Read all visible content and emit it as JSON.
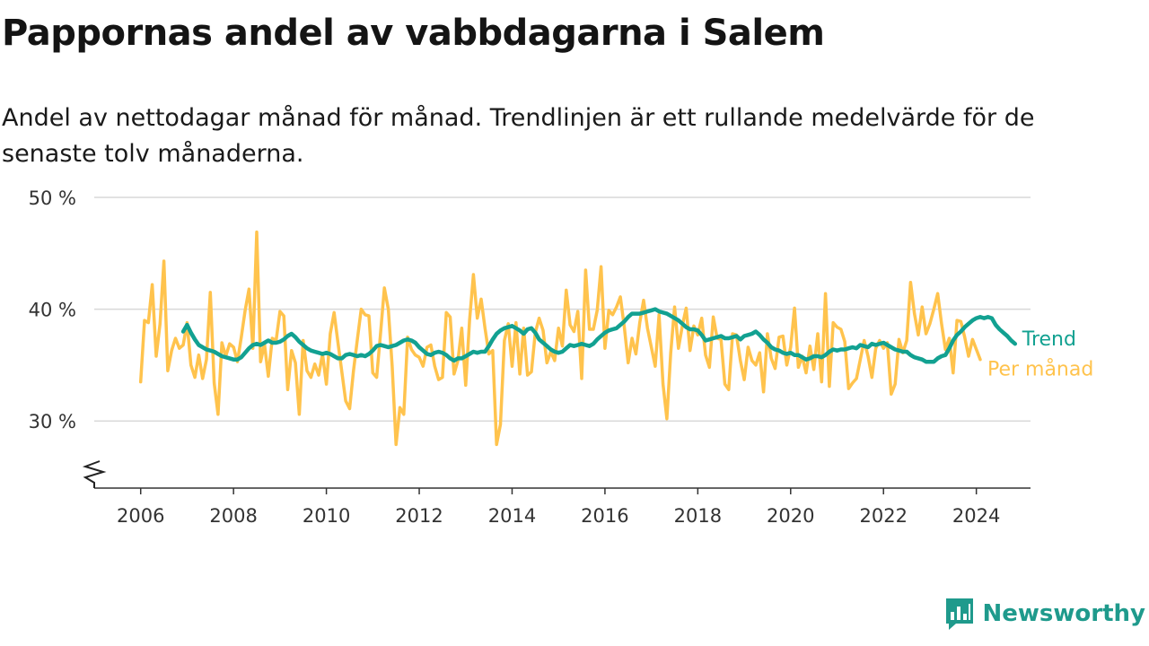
{
  "title": "Pappornas andel av vabbdagarna i Salem",
  "subtitle": "Andel av nettodagar månad för månad. Trendlinjen är ett rullande medelvärde för de senaste tolv månaderna.",
  "brand": {
    "name": "Newsworthy",
    "icon": "newsworthy-logo-icon",
    "color": "#1f9a8c"
  },
  "chart_data": {
    "type": "line",
    "xlabel": "",
    "ylabel": "",
    "x_ticks": [
      "2006",
      "2008",
      "2010",
      "2012",
      "2014",
      "2016",
      "2018",
      "2020",
      "2022",
      "2024"
    ],
    "y_ticks": [
      "30 %",
      "40 %",
      "50 %"
    ],
    "y_tick_values": [
      30,
      40,
      50
    ],
    "ylim": [
      24,
      50
    ],
    "xlim": [
      "2005-01",
      "2025-03"
    ],
    "grid": true,
    "legend": "direct labels at line ends",
    "series": [
      {
        "name": "Per månad",
        "color": "#ffc34d",
        "start": "2006-01",
        "frequency": "monthly",
        "values": [
          33.5,
          39,
          38.8,
          42.2,
          35.8,
          38.7,
          44.3,
          34.5,
          36.3,
          37.4,
          36.5,
          36.8,
          38.8,
          35,
          33.9,
          35.9,
          33.8,
          35.5,
          41.5,
          33.4,
          30.6,
          37,
          35.8,
          36.9,
          36.6,
          35.3,
          37.5,
          39.9,
          41.8,
          36.5,
          46.9,
          35.3,
          36.9,
          34,
          37.4,
          37.2,
          39.8,
          39.4,
          32.8,
          36.3,
          35.2,
          30.6,
          37.2,
          34.5,
          33.9,
          35.1,
          34.1,
          36,
          33.3,
          37.8,
          39.7,
          37,
          34.4,
          31.8,
          31.1,
          34.5,
          37.3,
          40,
          39.5,
          39.4,
          34.3,
          33.9,
          37.8,
          41.9,
          40,
          34.9,
          27.9,
          31.2,
          30.6,
          37.5,
          36.4,
          35.9,
          35.7,
          34.9,
          36.6,
          36.8,
          34.9,
          33.7,
          33.9,
          39.7,
          39.3,
          34.2,
          35.4,
          38.3,
          33.2,
          39,
          43.1,
          39.2,
          40.9,
          38.3,
          36,
          36.3,
          27.9,
          29.7,
          37.2,
          38.7,
          34.9,
          38.8,
          34.2,
          38.3,
          34.1,
          34.4,
          37.9,
          39.2,
          38.1,
          35.2,
          36.2,
          35.4,
          38.3,
          36.7,
          41.7,
          38.6,
          38,
          39.8,
          33.8,
          43.5,
          38.2,
          38.2,
          39.9,
          43.8,
          36.5,
          39.9,
          39.5,
          40.2,
          41.1,
          38.4,
          35.2,
          37.4,
          36,
          38.8,
          40.8,
          38.3,
          36.6,
          34.9,
          39.5,
          33.3,
          30.2,
          36.1,
          40.2,
          36.5,
          38.5,
          40.1,
          36.3,
          38.5,
          37.7,
          39.2,
          35.9,
          34.8,
          39.3,
          37.4,
          37.3,
          33.3,
          32.8,
          37.8,
          37.7,
          35.4,
          33.7,
          36.6,
          35.4,
          35,
          36.1,
          32.6,
          37.8,
          35.6,
          34.7,
          37.5,
          37.6,
          35,
          36.6,
          40.1,
          34.8,
          35.8,
          34.3,
          36.7,
          34.6,
          37.8,
          33.5,
          41.4,
          33.1,
          38.8,
          38.4,
          38.2,
          37.1,
          32.9,
          33.4,
          33.8,
          35.5,
          37.2,
          35.8,
          33.9,
          36.5,
          37.2,
          36.5,
          37,
          32.4,
          33.3,
          37.3,
          36.1,
          37.2,
          42.4,
          39.6,
          37.7,
          40.2,
          37.8,
          38.7,
          40,
          41.4,
          38.7,
          36.4,
          37.4,
          34.3,
          39,
          38.9,
          37.5,
          35.8,
          37.3,
          36.4,
          35.5
        ],
        "end_label": "Per månad"
      },
      {
        "name": "Trend",
        "color": "#12a191",
        "start": "2006-12",
        "frequency": "monthly",
        "values": [
          38,
          38.6,
          37.9,
          37.3,
          36.8,
          36.6,
          36.4,
          36.3,
          36.2,
          36,
          35.8,
          35.7,
          35.6,
          35.5,
          35.5,
          35.7,
          36.1,
          36.5,
          36.8,
          36.9,
          36.8,
          37,
          37.2,
          37,
          37,
          37.1,
          37.3,
          37.6,
          37.8,
          37.5,
          37.1,
          36.8,
          36.5,
          36.3,
          36.2,
          36.1,
          36,
          36.1,
          36,
          35.8,
          35.6,
          35.6,
          35.9,
          36,
          35.9,
          35.8,
          35.9,
          35.8,
          36,
          36.3,
          36.7,
          36.8,
          36.7,
          36.6,
          36.7,
          36.8,
          37,
          37.2,
          37.3,
          37.2,
          37,
          36.6,
          36.3,
          36,
          35.9,
          36.1,
          36.2,
          36.1,
          35.9,
          35.6,
          35.4,
          35.6,
          35.6,
          35.8,
          36,
          36.2,
          36.1,
          36.2,
          36.2,
          36.7,
          37.3,
          37.8,
          38.1,
          38.3,
          38.4,
          38.5,
          38.3,
          38.1,
          37.8,
          38.2,
          38.3,
          37.9,
          37.3,
          37,
          36.7,
          36.4,
          36.2,
          36.1,
          36.2,
          36.5,
          36.8,
          36.7,
          36.8,
          36.9,
          36.8,
          36.7,
          36.9,
          37.3,
          37.6,
          37.9,
          38.1,
          38.2,
          38.3,
          38.6,
          38.9,
          39.3,
          39.6,
          39.6,
          39.6,
          39.7,
          39.8,
          39.9,
          40,
          39.8,
          39.7,
          39.6,
          39.4,
          39.2,
          39,
          38.7,
          38.4,
          38.2,
          38.2,
          38.1,
          37.7,
          37.2,
          37.3,
          37.4,
          37.5,
          37.6,
          37.4,
          37.4,
          37.5,
          37.6,
          37.3,
          37.6,
          37.7,
          37.8,
          38,
          37.7,
          37.3,
          37,
          36.6,
          36.4,
          36.3,
          36.1,
          36,
          36.1,
          35.9,
          35.9,
          35.7,
          35.5,
          35.6,
          35.8,
          35.8,
          35.7,
          35.9,
          36.2,
          36.4,
          36.3,
          36.4,
          36.4,
          36.5,
          36.6,
          36.5,
          36.8,
          36.7,
          36.6,
          36.9,
          36.8,
          36.9,
          37,
          36.8,
          36.6,
          36.4,
          36.3,
          36.2,
          36.2,
          35.9,
          35.7,
          35.6,
          35.5,
          35.3,
          35.3,
          35.3,
          35.6,
          35.8,
          35.9,
          36.5,
          37.2,
          37.7,
          38,
          38.4,
          38.7,
          39,
          39.2,
          39.3,
          39.2,
          39.3,
          39.2,
          38.6,
          38.2,
          37.9,
          37.6,
          37.2,
          36.9
        ],
        "end_label": "Trend"
      }
    ]
  }
}
